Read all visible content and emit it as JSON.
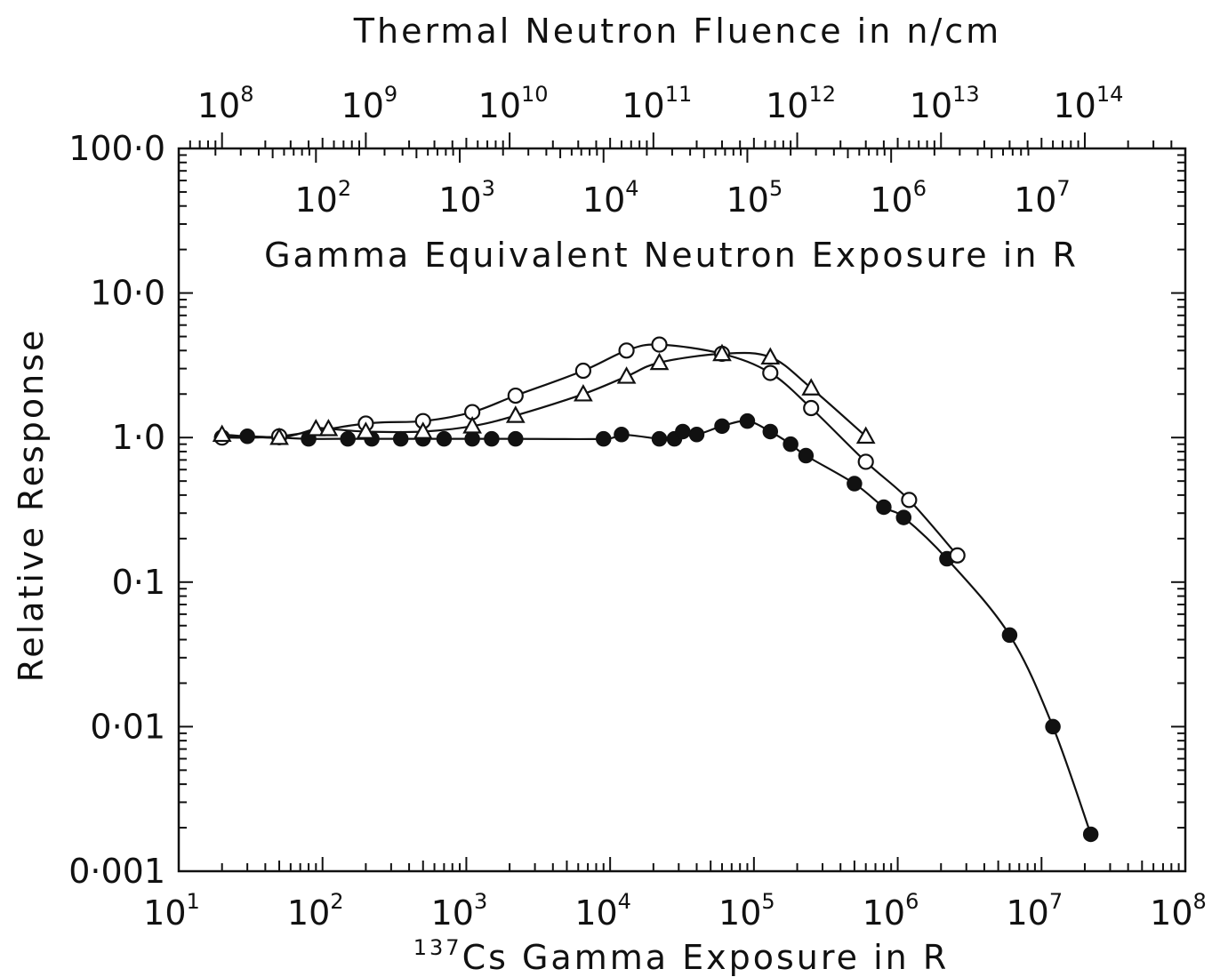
{
  "chart_data": {
    "type": "scatter",
    "title": "",
    "xlabel_sup": "137",
    "xlabel": "Cs Gamma Exposure in R",
    "ylabel": "Relative Response",
    "top_axis_label": "Thermal Neutron Fluence in n/cm",
    "inner_axis_label": "Gamma Equivalent Neutron Exposure in R",
    "x_scale": "log",
    "y_scale": "log",
    "xlim": [
      10,
      100000000
    ],
    "ylim": [
      0.001,
      100
    ],
    "x_ticks": [
      {
        "base": "10",
        "exp": "1"
      },
      {
        "base": "10",
        "exp": "2"
      },
      {
        "base": "10",
        "exp": "3"
      },
      {
        "base": "10",
        "exp": "4"
      },
      {
        "base": "10",
        "exp": "5"
      },
      {
        "base": "10",
        "exp": "6"
      },
      {
        "base": "10",
        "exp": "7"
      },
      {
        "base": "10",
        "exp": "8"
      }
    ],
    "y_ticks": [
      "0·001",
      "0·01",
      "0·1",
      "1·0",
      "10·0",
      "100·0"
    ],
    "top_ticks": [
      {
        "base": "10",
        "exp": "8",
        "at": 20
      },
      {
        "base": "10",
        "exp": "9",
        "at": 200
      },
      {
        "base": "10",
        "exp": "10",
        "at": 2000
      },
      {
        "base": "10",
        "exp": "11",
        "at": 20000
      },
      {
        "base": "10",
        "exp": "12",
        "at": 200000
      },
      {
        "base": "10",
        "exp": "13",
        "at": 2000000
      },
      {
        "base": "10",
        "exp": "14",
        "at": 20000000
      }
    ],
    "inner_ticks": [
      {
        "base": "10",
        "exp": "2",
        "at": 90
      },
      {
        "base": "10",
        "exp": "3",
        "at": 900
      },
      {
        "base": "10",
        "exp": "4",
        "at": 9000
      },
      {
        "base": "10",
        "exp": "5",
        "at": 90000
      },
      {
        "base": "10",
        "exp": "6",
        "at": 900000
      },
      {
        "base": "10",
        "exp": "7",
        "at": 9000000
      }
    ],
    "grid": false,
    "legend": "none",
    "series": [
      {
        "marker": "filled-circle",
        "x": [
          20,
          30,
          50,
          80,
          150,
          220,
          350,
          500,
          700,
          1100,
          1500,
          2200,
          9000,
          12000,
          22000,
          28000,
          32000,
          40000,
          60000,
          90000,
          130000,
          180000,
          230000,
          500000,
          800000,
          1100000,
          2200000,
          6000000,
          12000000,
          22000000
        ],
        "y": [
          1.0,
          1.02,
          1.0,
          0.98,
          0.98,
          0.98,
          0.98,
          0.98,
          0.98,
          0.98,
          0.98,
          0.98,
          0.98,
          1.05,
          0.98,
          0.98,
          1.1,
          1.05,
          1.2,
          1.3,
          1.1,
          0.9,
          0.75,
          0.48,
          0.33,
          0.28,
          0.145,
          0.043,
          0.01,
          0.0018
        ]
      },
      {
        "marker": "open-circle",
        "x": [
          20,
          50,
          200,
          500,
          1100,
          2200,
          6500,
          13000,
          22000,
          60000,
          130000,
          250000,
          600000,
          1200000,
          2600000
        ],
        "y": [
          1.0,
          1.02,
          1.25,
          1.3,
          1.5,
          1.95,
          2.9,
          4.0,
          4.4,
          3.8,
          2.8,
          1.6,
          0.68,
          0.37,
          0.153
        ]
      },
      {
        "marker": "open-triangle",
        "x": [
          20,
          50,
          90,
          110,
          200,
          500,
          1100,
          2200,
          6500,
          13000,
          22000,
          60000,
          130000,
          250000,
          600000
        ],
        "y": [
          1.05,
          1.0,
          1.15,
          1.15,
          1.1,
          1.1,
          1.2,
          1.42,
          2.0,
          2.65,
          3.3,
          3.8,
          3.6,
          2.2,
          1.02
        ]
      }
    ]
  }
}
